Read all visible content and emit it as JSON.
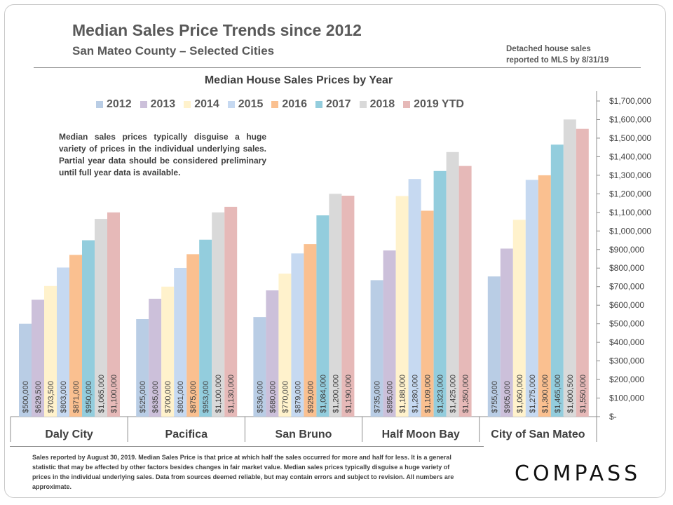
{
  "header": {
    "title": "Median Sales Price Trends since 2012",
    "subtitle": "San Mateo County – Selected Cities",
    "source_note_line1": "Detached house sales",
    "source_note_line2": "reported to MLS by 8/31/19"
  },
  "annotation": "Median sales prices typically disguise a huge variety of prices in the individual underlying sales. Partial year data should be considered preliminary until full year data is available.",
  "footnote": "Sales reported by August 30, 2019. Median Sales Price is that price at which half the sales occurred for more and half for less. It is a general statistic that may be affected by other factors besides changes in fair market value. Median sales prices typically disguise a huge variety of prices in the individual underlying sales. Data from sources deemed reliable, but may contain errors and subject to revision. All numbers are approximate.",
  "logo": "COMPASS",
  "chart_data": {
    "type": "bar",
    "title": "Median House Sales Prices by Year",
    "categories": [
      "Daly City",
      "Pacifica",
      "San Bruno",
      "Half Moon Bay",
      "City of San Mateo"
    ],
    "series": [
      {
        "name": "2012",
        "color": "#b9cde5",
        "values": [
          500000,
          525000,
          536000,
          735000,
          755000
        ],
        "labels": [
          "$500,000",
          "$525,000",
          "$536,000",
          "$735,000",
          "$755,000"
        ]
      },
      {
        "name": "2013",
        "color": "#ccc0da",
        "values": [
          629500,
          635000,
          680000,
          895000,
          905000
        ],
        "labels": [
          "$629,500",
          "$635,000",
          "$680,000",
          "$895,000",
          "$905,000"
        ]
      },
      {
        "name": "2014",
        "color": "#fff2cc",
        "values": [
          703500,
          700000,
          770000,
          1188000,
          1060000
        ],
        "labels": [
          "$703,500",
          "$700,000",
          "$770,000",
          "$1,188,000",
          "$1,060,000"
        ]
      },
      {
        "name": "2015",
        "color": "#c6d9f1",
        "values": [
          803000,
          801000,
          879000,
          1280000,
          1275000
        ],
        "labels": [
          "$803,000",
          "$801,000",
          "$879,000",
          "$1,280,000",
          "$1,275,000"
        ]
      },
      {
        "name": "2016",
        "color": "#fac090",
        "values": [
          871000,
          875000,
          929000,
          1109000,
          1300000
        ],
        "labels": [
          "$871,000",
          "$875,000",
          "$929,000",
          "$1,109,000",
          "$1,300,000"
        ]
      },
      {
        "name": "2017",
        "color": "#93cddd",
        "values": [
          950000,
          953000,
          1084000,
          1323000,
          1465000
        ],
        "labels": [
          "$950,000",
          "$953,000",
          "$1,084,000",
          "$1,323,000",
          "$1,465,000"
        ]
      },
      {
        "name": "2018",
        "color": "#d9d9d9",
        "values": [
          1065000,
          1100000,
          1200000,
          1425000,
          1600500
        ],
        "labels": [
          "$1,065,000",
          "$1,100,000",
          "$1,200,000",
          "$1,425,000",
          "$1,600,500"
        ]
      },
      {
        "name": "2019 YTD",
        "color": "#e6b9b8",
        "values": [
          1100000,
          1130000,
          1190000,
          1350000,
          1550000
        ],
        "labels": [
          "$1,100,000",
          "$1,130,000",
          "$1,190,000",
          "$1,350,000",
          "$1,550,000"
        ]
      }
    ],
    "ylim": [
      0,
      1700000
    ],
    "yticks": [
      0,
      100000,
      200000,
      300000,
      400000,
      500000,
      600000,
      700000,
      800000,
      900000,
      1000000,
      1100000,
      1200000,
      1300000,
      1400000,
      1500000,
      1600000,
      1700000
    ],
    "ytick_labels": [
      "$-",
      "$100,000",
      "$200,000",
      "$300,000",
      "$400,000",
      "$500,000",
      "$600,000",
      "$700,000",
      "$800,000",
      "$900,000",
      "$1,000,000",
      "$1,100,000",
      "$1,200,000",
      "$1,300,000",
      "$1,400,000",
      "$1,500,000",
      "$1,600,000",
      "$1,700,000"
    ],
    "y_axis_position": "right",
    "legend_position": "top",
    "grid": false,
    "data_labels": "vertical-inside-bottom"
  }
}
